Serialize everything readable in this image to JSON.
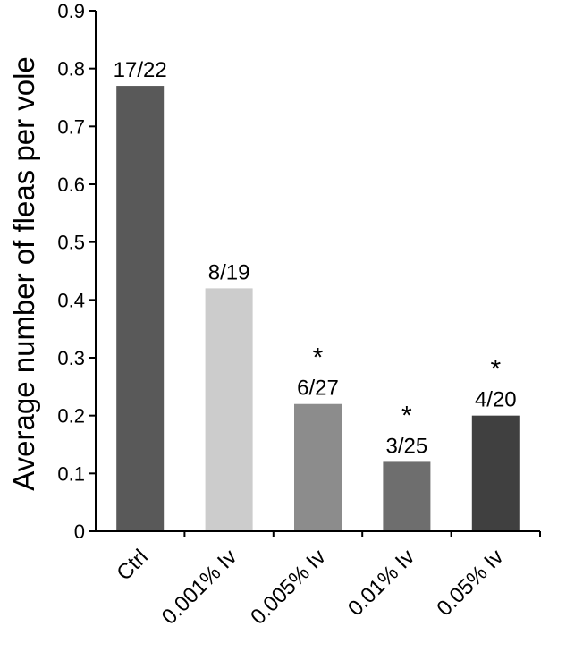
{
  "chart_data": {
    "type": "bar",
    "title": "",
    "xlabel": "",
    "ylabel": "Average number of fleas per vole",
    "ylim": [
      0,
      0.9
    ],
    "yticks": [
      0,
      0.1,
      0.2,
      0.3,
      0.4,
      0.5,
      0.6,
      0.7,
      0.8,
      0.9
    ],
    "ytick_labels": [
      "0",
      "0.1",
      "0.2",
      "0.3",
      "0.4",
      "0.5",
      "0.6",
      "0.7",
      "0.8",
      "0.9"
    ],
    "categories": [
      "Ctrl",
      "0.001% Iv",
      "0.005% Iv",
      "0.01% Iv",
      "0.05% Iv"
    ],
    "values": [
      0.77,
      0.42,
      0.22,
      0.12,
      0.2
    ],
    "data_labels": [
      "17/22",
      "8/19",
      "6/27",
      "3/25",
      "4/20"
    ],
    "significance": [
      "",
      "",
      "*",
      "*",
      "*"
    ],
    "colors": [
      "#595959",
      "#cccccc",
      "#8c8c8c",
      "#6e6e6e",
      "#404040"
    ],
    "grid": false,
    "legend": false
  }
}
